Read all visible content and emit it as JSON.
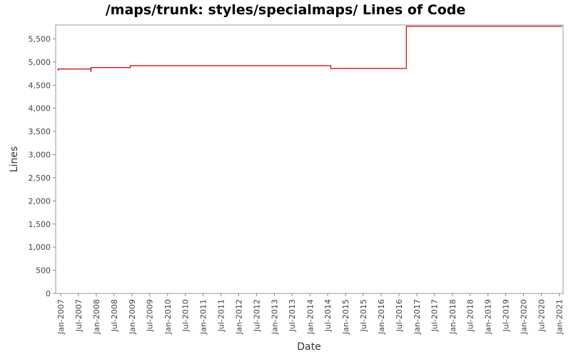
{
  "chart_data": {
    "type": "line",
    "title": "/maps/trunk: styles/specialmaps/ Lines of Code",
    "xlabel": "Date",
    "ylabel": "Lines",
    "ylim": [
      0,
      5800
    ],
    "xlim": [
      "2006-11-10",
      "2021-02-10"
    ],
    "grid": false,
    "y_ticks": [
      0,
      500,
      1000,
      1500,
      2000,
      2500,
      3000,
      3500,
      4000,
      4500,
      5000,
      5500
    ],
    "y_tick_labels": [
      "0",
      "500",
      "1,000",
      "1,500",
      "2,000",
      "2,500",
      "3,000",
      "3,500",
      "4,000",
      "4,500",
      "5,000",
      "5,500"
    ],
    "x_ticks": [
      "2007-01-01",
      "2007-07-01",
      "2008-01-01",
      "2008-07-01",
      "2009-01-01",
      "2009-07-01",
      "2010-01-01",
      "2010-07-01",
      "2011-01-01",
      "2011-07-01",
      "2012-01-01",
      "2012-07-01",
      "2013-01-01",
      "2013-07-01",
      "2014-01-01",
      "2014-07-01",
      "2015-01-01",
      "2015-07-01",
      "2016-01-01",
      "2016-07-01",
      "2017-01-01",
      "2017-07-01",
      "2018-01-01",
      "2018-07-01",
      "2019-01-01",
      "2019-07-01",
      "2020-01-01",
      "2020-07-01",
      "2021-01-01"
    ],
    "x_tick_labels": [
      "Jan-2007",
      "Jul-2007",
      "Jan-2008",
      "Jul-2008",
      "Jan-2009",
      "Jul-2009",
      "Jan-2010",
      "Jul-2010",
      "Jan-2011",
      "Jul-2011",
      "Jan-2012",
      "Jul-2012",
      "Jan-2013",
      "Jul-2013",
      "Jan-2014",
      "Jul-2014",
      "Jan-2015",
      "Jul-2015",
      "Jan-2016",
      "Jul-2016",
      "Jan-2017",
      "Jul-2017",
      "Jan-2018",
      "Jul-2018",
      "Jan-2019",
      "Jul-2019",
      "Jan-2020",
      "Jul-2020",
      "Jan-2021"
    ],
    "series": [
      {
        "color": "#cc0000",
        "step": true,
        "points": [
          {
            "x": "2006-12-01",
            "y": 4820
          },
          {
            "x": "2006-12-05",
            "y": 4850
          },
          {
            "x": "2007-11-01",
            "y": 4850
          },
          {
            "x": "2007-11-05",
            "y": 4800
          },
          {
            "x": "2007-11-08",
            "y": 4880
          },
          {
            "x": "2008-12-10",
            "y": 4880
          },
          {
            "x": "2008-12-15",
            "y": 4920
          },
          {
            "x": "2014-07-20",
            "y": 4920
          },
          {
            "x": "2014-08-01",
            "y": 4860
          },
          {
            "x": "2016-09-10",
            "y": 4860
          },
          {
            "x": "2016-09-15",
            "y": 5770
          },
          {
            "x": "2021-01-25",
            "y": 5780
          }
        ]
      }
    ]
  }
}
